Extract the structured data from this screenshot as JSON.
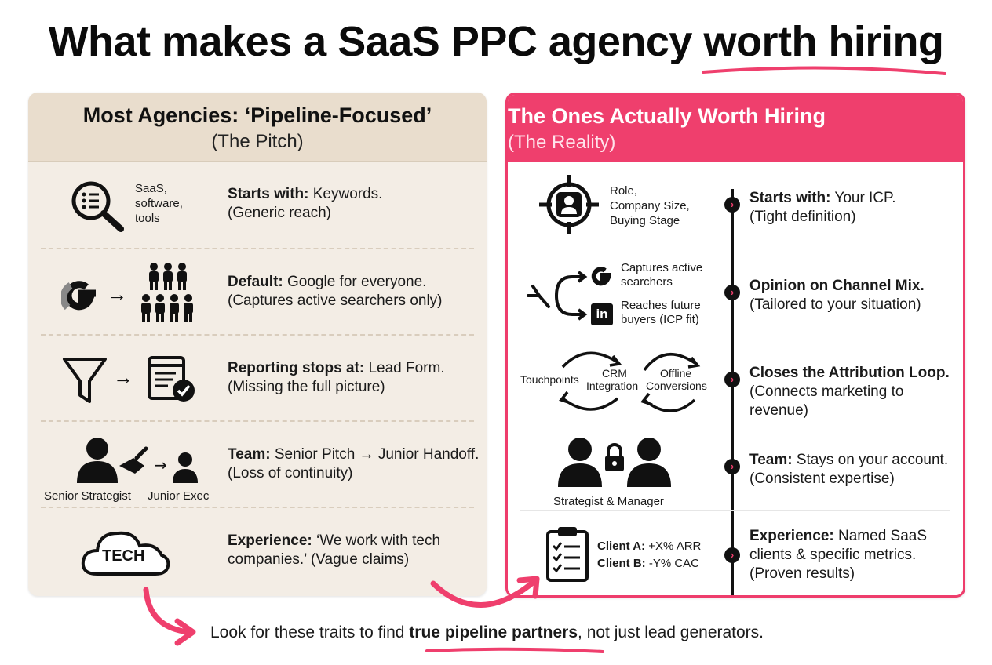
{
  "title": {
    "prefix": "What makes a SaaS PPC agency ",
    "highlight": "worth hiring"
  },
  "left": {
    "heading": "Most Agencies: ‘Pipeline-Focused’",
    "subheading": "(The Pitch)",
    "rows": [
      {
        "icon_label_1": "SaaS,",
        "icon_label_2": "software,",
        "icon_label_3": "tools",
        "label": "Starts with:",
        "value": " Keywords.",
        "note": "(Generic reach)"
      },
      {
        "label": "Default:",
        "value": " Google for everyone.",
        "note": "(Captures active searchers only)"
      },
      {
        "label": "Reporting stops at:",
        "value": " Lead Form.",
        "note": "(Missing the full picture)"
      },
      {
        "icon_label_1": "Senior Strategist",
        "icon_label_2": "Junior Exec",
        "label": "Team:",
        "value": " Senior Pitch → Junior Handoff.",
        "note": "(Loss of continuity)"
      },
      {
        "icon_label_1": "TECH",
        "label": "Experience:",
        "value": " ‘We work with tech",
        "value2": "companies.’ (Vague claims)"
      }
    ]
  },
  "right": {
    "heading": "The Ones Actually Worth Hiring",
    "subheading": "(The Reality)",
    "rows": [
      {
        "icon_label_1": "Role,",
        "icon_label_2": "Company Size,",
        "icon_label_3": "Buying Stage",
        "label": "Starts with:",
        "value": " Your ICP.",
        "note": "(Tight definition)"
      },
      {
        "icon_label_1": "Captures active",
        "icon_label_2": "searchers",
        "icon_label_3": "Reaches future",
        "icon_label_4": "buyers (ICP fit)",
        "label": "Opinion on Channel Mix.",
        "note": "(Tailored to your situation)"
      },
      {
        "icon_label_1": "Touchpoints",
        "icon_label_2": "CRM",
        "icon_label_3": "Integration",
        "icon_label_4": "Offline",
        "icon_label_5": "Conversions",
        "label": "Closes the Attribution Loop.",
        "note": "(Connects marketing to revenue)"
      },
      {
        "icon_label_1": "Strategist & Manager",
        "label": "Team:",
        "value": " Stays on your account.",
        "note": "(Consistent expertise)"
      },
      {
        "icon_label_1": "Client A:",
        "icon_value_1": " +X% ARR",
        "icon_label_2": "Client B:",
        "icon_value_2": " -Y% CAC",
        "label": "Experience:",
        "value": " Named SaaS",
        "value2": "clients & specific metrics.",
        "note": "(Proven results)"
      }
    ]
  },
  "footer": {
    "prefix": "Look for these traits to find ",
    "highlight": "true pipeline partners",
    "suffix": ", not just lead generators."
  },
  "colors": {
    "accent": "#ef3f6d",
    "left_bg": "#f3ede5",
    "left_head": "#e9ddcd"
  }
}
